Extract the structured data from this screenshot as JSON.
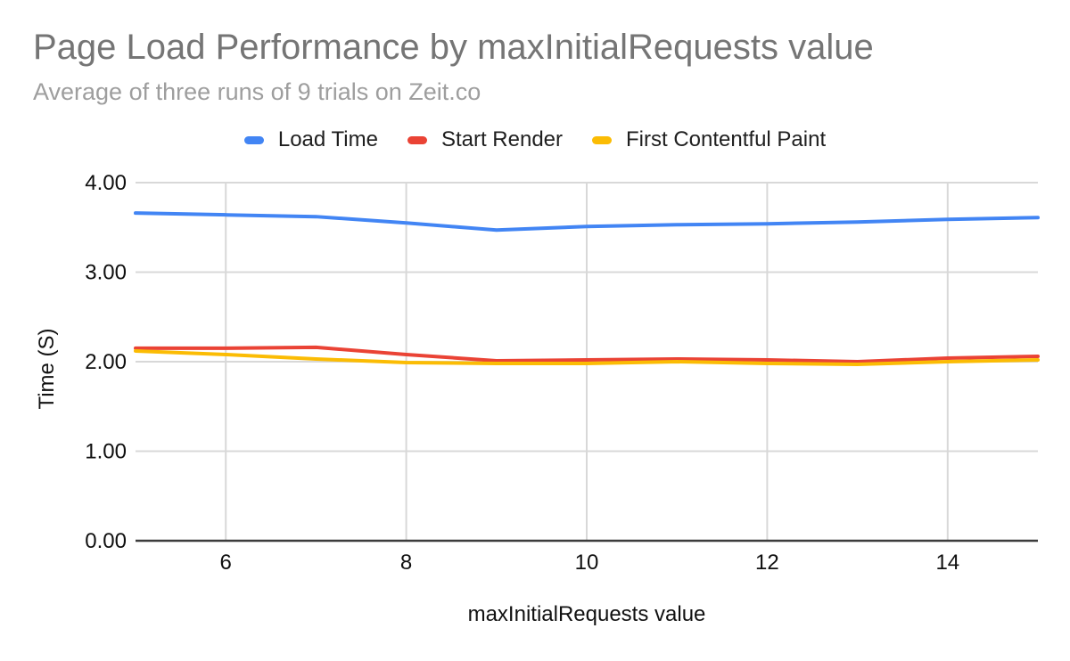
{
  "header": {
    "title": "Page Load Performance by maxInitialRequests value",
    "subtitle": "Average of three runs of 9 trials on Zeit.co"
  },
  "chart_data": {
    "type": "line",
    "title": "Page Load Performance by maxInitialRequests value",
    "subtitle": "Average of three runs of 9 trials on Zeit.co",
    "xlabel": "maxInitialRequests value",
    "ylabel": "Time (S)",
    "x": [
      5,
      6,
      7,
      8,
      9,
      10,
      11,
      12,
      13,
      14,
      15
    ],
    "xlim": [
      5,
      15
    ],
    "ylim": [
      0,
      4
    ],
    "xticks": [
      6,
      8,
      10,
      12,
      14
    ],
    "yticks": [
      0,
      1,
      2,
      3,
      4
    ],
    "ytick_labels": [
      "0.00",
      "1.00",
      "2.00",
      "3.00",
      "4.00"
    ],
    "grid": true,
    "legend_position": "top",
    "series": [
      {
        "name": "Load Time",
        "color": "#4285F4",
        "values": [
          3.66,
          3.64,
          3.62,
          3.55,
          3.47,
          3.51,
          3.53,
          3.54,
          3.56,
          3.59,
          3.61
        ]
      },
      {
        "name": "Start Render",
        "color": "#EA4335",
        "values": [
          2.15,
          2.15,
          2.16,
          2.08,
          2.01,
          2.02,
          2.03,
          2.02,
          2.0,
          2.04,
          2.06
        ]
      },
      {
        "name": "First Contentful Paint",
        "color": "#FBBC04",
        "values": [
          2.12,
          2.08,
          2.03,
          1.99,
          1.98,
          1.98,
          2.0,
          1.98,
          1.97,
          2.0,
          2.02
        ]
      }
    ]
  },
  "colors": {
    "gridline": "#d8d8d8",
    "axis_baseline": "#3c3c3c",
    "tick_label": "#0f0f0f",
    "title": "#757575",
    "subtitle": "#9e9e9e"
  }
}
